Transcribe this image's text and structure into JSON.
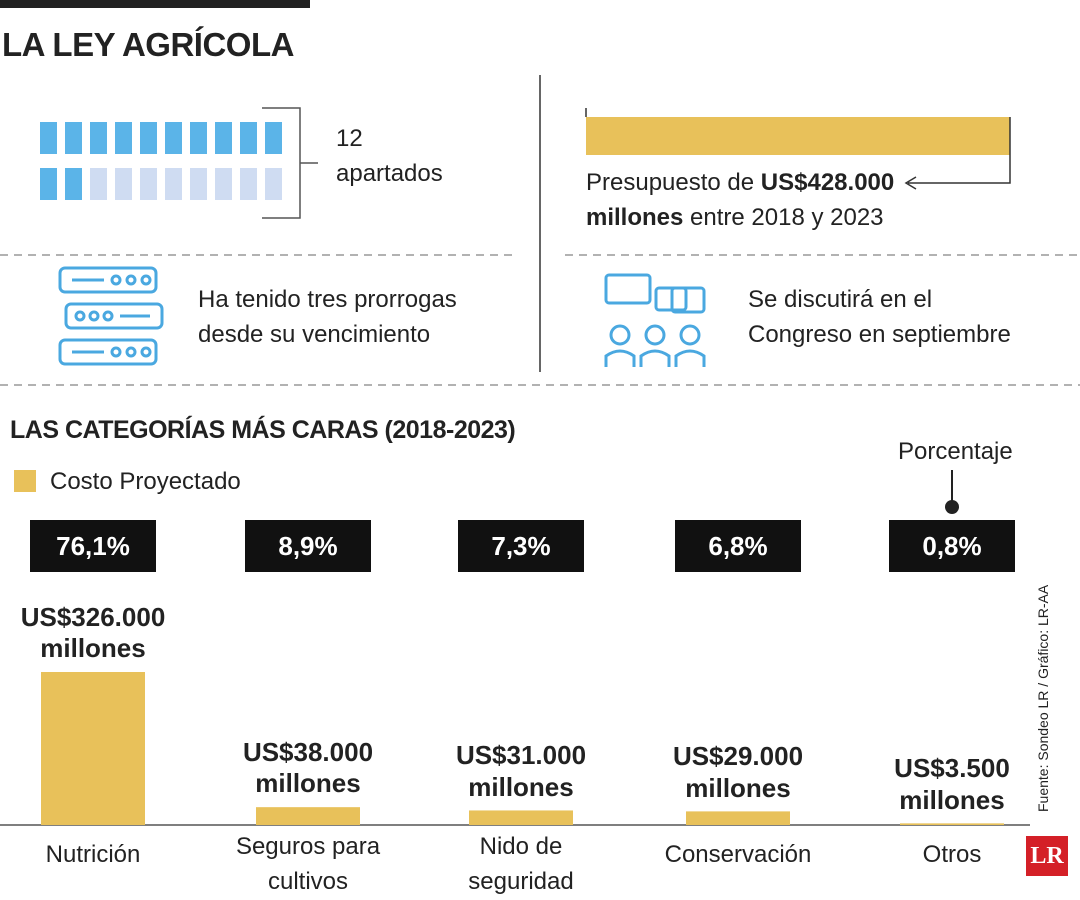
{
  "header": {
    "title": "LA LEY AGRÍCOLA"
  },
  "facts": {
    "sections": {
      "count": "12",
      "label": "apartados"
    },
    "budget": {
      "prefix": "Presupuesto de",
      "amount": "US$428.000",
      "unit": "millones",
      "suffix": "entre 2018 y 2023"
    },
    "extensions": "Ha tenido tres prorrogas desde su vencimiento",
    "congress": "Se discutirá en el Congreso en septiembre"
  },
  "chart_data": {
    "type": "bar",
    "title": "LAS CATEGORÍAS MÁS CARAS (2018-2023)",
    "categories": [
      "Nutrición",
      "Seguros para cultivos",
      "Nido de seguridad",
      "Conservación",
      "Otros"
    ],
    "series": [
      {
        "name": "Costo Proyectado",
        "color": "#e8c15a",
        "values": [
          326000,
          38000,
          31000,
          29000,
          3500
        ],
        "value_labels": [
          "US$326.000 millones",
          "US$38.000 millones",
          "US$31.000 millones",
          "US$29.000 millones",
          "US$3.500 millones"
        ]
      }
    ],
    "percentages": {
      "name": "Porcentaje",
      "values": [
        76.1,
        8.9,
        7.3,
        6.8,
        0.8
      ],
      "value_labels": [
        "76,1%",
        "8,9%",
        "7,3%",
        "6,8%",
        "0,8%"
      ]
    }
  },
  "source": "Fuente: Sondeo LR / Gráfico: LR-AA",
  "logo": "LR"
}
